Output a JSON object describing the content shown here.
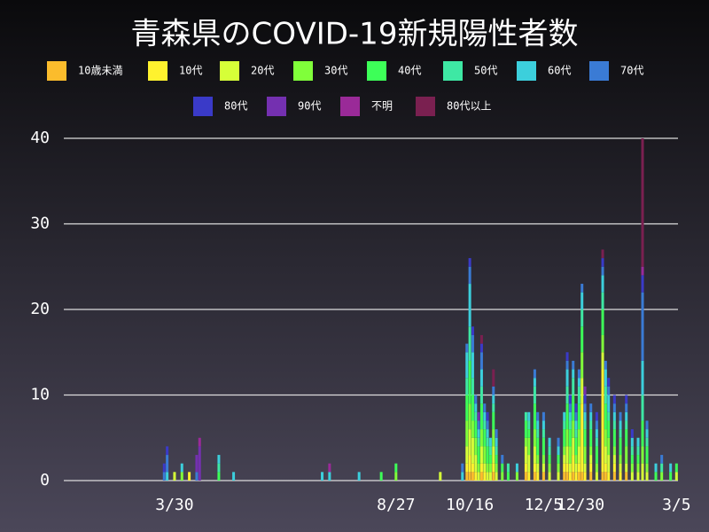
{
  "chart_data": {
    "type": "stacked-bar",
    "title": "青森県のCOVID-19新規陽性者数",
    "x": [
      -7,
      -5,
      0,
      5,
      10,
      15,
      17,
      30,
      40,
      100,
      105,
      125,
      140,
      150,
      180,
      195,
      198,
      200,
      202,
      204,
      206,
      208,
      210,
      212,
      214,
      216,
      218,
      222,
      226,
      232,
      238,
      240,
      244,
      246,
      250,
      254,
      260,
      264,
      266,
      268,
      270,
      272,
      274,
      276,
      278,
      282,
      286,
      290,
      292,
      294,
      298,
      302,
      306,
      310,
      314,
      317,
      320,
      326,
      330,
      336,
      340
    ],
    "xlim": [
      -75,
      341
    ],
    "xticks": [
      {
        "value": 0,
        "label": "3/30"
      },
      {
        "value": 150,
        "label": "8/27"
      },
      {
        "value": 200,
        "label": "10/16"
      },
      {
        "value": 250,
        "label": "12/5"
      },
      {
        "value": 275,
        "label": "12/30"
      },
      {
        "value": 340,
        "label": "3/5"
      }
    ],
    "ylim": [
      0,
      40
    ],
    "yticks": [
      0,
      10,
      20,
      30,
      40
    ],
    "grid": true,
    "series": [
      {
        "name": "10歳未満",
        "color": "#fbbc2c",
        "values": [
          0,
          0,
          0,
          0,
          0,
          0,
          0,
          0,
          0,
          0,
          0,
          0,
          0,
          0,
          0,
          0,
          1,
          1,
          1,
          0,
          0,
          1,
          0,
          0,
          0,
          1,
          0,
          0,
          0,
          0,
          1,
          0,
          1,
          0,
          1,
          0,
          0,
          1,
          1,
          0,
          1,
          0,
          1,
          1,
          0,
          1,
          0,
          1,
          1,
          0,
          1,
          0,
          1,
          0,
          0,
          0,
          0,
          0,
          0,
          0,
          0
        ]
      },
      {
        "name": "10代",
        "color": "#fff22e",
        "values": [
          0,
          0,
          0,
          0,
          1,
          0,
          0,
          0,
          0,
          0,
          0,
          0,
          0,
          0,
          0,
          0,
          1,
          2,
          1,
          1,
          0,
          1,
          1,
          0,
          0,
          1,
          0,
          0,
          0,
          0,
          1,
          1,
          1,
          1,
          0,
          0,
          0,
          1,
          1,
          1,
          2,
          1,
          1,
          8,
          1,
          1,
          0,
          12,
          1,
          1,
          1,
          1,
          0,
          0,
          0,
          0,
          0,
          0,
          0,
          0,
          0
        ]
      },
      {
        "name": "20代",
        "color": "#d6ff38",
        "values": [
          0,
          0,
          1,
          0,
          0,
          0,
          0,
          0,
          0,
          0,
          0,
          0,
          0,
          0,
          1,
          0,
          2,
          3,
          3,
          2,
          1,
          2,
          1,
          1,
          1,
          2,
          1,
          0,
          0,
          0,
          2,
          2,
          2,
          1,
          1,
          1,
          1,
          1,
          2,
          1,
          2,
          1,
          2,
          3,
          1,
          1,
          1,
          2,
          2,
          2,
          1,
          1,
          1,
          1,
          1,
          2,
          1,
          0,
          0,
          0,
          1
        ]
      },
      {
        "name": "30代",
        "color": "#80ff3a",
        "values": [
          0,
          0,
          0,
          1,
          0,
          0,
          0,
          0,
          0,
          0,
          0,
          0,
          0,
          1,
          0,
          0,
          3,
          3,
          2,
          2,
          1,
          2,
          2,
          1,
          1,
          2,
          1,
          1,
          0,
          1,
          1,
          2,
          2,
          1,
          1,
          1,
          1,
          1,
          2,
          2,
          2,
          1,
          2,
          3,
          2,
          1,
          1,
          2,
          2,
          2,
          1,
          1,
          2,
          1,
          1,
          2,
          1,
          0,
          1,
          0,
          0
        ]
      },
      {
        "name": "40代",
        "color": "#3dff58",
        "values": [
          0,
          0,
          0,
          0,
          0,
          0,
          0,
          1,
          0,
          0,
          0,
          0,
          1,
          1,
          0,
          0,
          3,
          5,
          3,
          2,
          2,
          3,
          2,
          2,
          1,
          2,
          1,
          1,
          1,
          0,
          2,
          1,
          3,
          2,
          2,
          1,
          1,
          2,
          3,
          2,
          3,
          2,
          3,
          3,
          2,
          2,
          2,
          3,
          3,
          2,
          2,
          2,
          2,
          1,
          1,
          3,
          2,
          1,
          0,
          1,
          1
        ]
      },
      {
        "name": "50代",
        "color": "#3ee8a4",
        "values": [
          0,
          0,
          0,
          0,
          0,
          0,
          0,
          1,
          0,
          0,
          0,
          0,
          0,
          0,
          0,
          0,
          2,
          4,
          2,
          1,
          1,
          2,
          1,
          1,
          1,
          1,
          1,
          0,
          1,
          0,
          1,
          1,
          2,
          1,
          1,
          1,
          0,
          1,
          2,
          1,
          2,
          1,
          2,
          2,
          1,
          1,
          1,
          2,
          2,
          1,
          1,
          1,
          1,
          1,
          1,
          3,
          1,
          0,
          1,
          0,
          0
        ]
      },
      {
        "name": "60代",
        "color": "#3ccfdc",
        "values": [
          0,
          1,
          0,
          1,
          0,
          0,
          0,
          1,
          1,
          1,
          1,
          1,
          0,
          0,
          0,
          1,
          3,
          5,
          3,
          1,
          1,
          2,
          1,
          1,
          1,
          1,
          1,
          0,
          0,
          1,
          0,
          1,
          1,
          1,
          1,
          1,
          1,
          1,
          2,
          1,
          1,
          1,
          1,
          2,
          1,
          1,
          1,
          2,
          2,
          2,
          1,
          1,
          1,
          1,
          1,
          4,
          1,
          1,
          0,
          1,
          0
        ]
      },
      {
        "name": "70代",
        "color": "#3a7bd5",
        "values": [
          1,
          2,
          0,
          0,
          0,
          1,
          0,
          0,
          0,
          0,
          0,
          0,
          0,
          0,
          0,
          1,
          1,
          2,
          2,
          1,
          1,
          2,
          1,
          1,
          0,
          1,
          1,
          1,
          0,
          0,
          0,
          0,
          1,
          1,
          1,
          0,
          1,
          0,
          1,
          1,
          1,
          1,
          1,
          1,
          1,
          1,
          1,
          1,
          1,
          1,
          1,
          1,
          1,
          0,
          0,
          8,
          1,
          0,
          1,
          0,
          0
        ]
      },
      {
        "name": "80代",
        "color": "#3a3ac8",
        "values": [
          1,
          1,
          0,
          0,
          0,
          0,
          0,
          0,
          0,
          0,
          0,
          0,
          0,
          0,
          0,
          0,
          0,
          1,
          1,
          0,
          0,
          1,
          0,
          1,
          0,
          0,
          0,
          0,
          0,
          0,
          0,
          0,
          0,
          0,
          0,
          0,
          0,
          0,
          1,
          1,
          0,
          1,
          0,
          0,
          1,
          0,
          1,
          1,
          0,
          1,
          1,
          0,
          1,
          1,
          0,
          2,
          0,
          0,
          0,
          0,
          0
        ]
      },
      {
        "name": "90代",
        "color": "#7430b0",
        "values": [
          0,
          0,
          0,
          0,
          0,
          2,
          4,
          0,
          0,
          0,
          0,
          0,
          0,
          0,
          0,
          0,
          0,
          0,
          0,
          0,
          1,
          0,
          0,
          0,
          0,
          0,
          0,
          0,
          0,
          0,
          0,
          0,
          0,
          0,
          0,
          0,
          0,
          0,
          0,
          0,
          0,
          0,
          0,
          0,
          1,
          0,
          0,
          0,
          0,
          0,
          0,
          0,
          0,
          0,
          0,
          0,
          0,
          0,
          0,
          0,
          0
        ]
      },
      {
        "name": "不明",
        "color": "#9a2a98",
        "values": [
          0,
          0,
          0,
          0,
          0,
          0,
          1,
          0,
          0,
          0,
          1,
          0,
          0,
          0,
          0,
          0,
          0,
          0,
          0,
          0,
          0,
          0,
          0,
          0,
          0,
          0,
          0,
          0,
          0,
          0,
          0,
          0,
          0,
          0,
          0,
          0,
          0,
          0,
          0,
          0,
          0,
          0,
          0,
          0,
          0,
          0,
          0,
          0,
          0,
          0,
          0,
          0,
          0,
          0,
          0,
          1,
          0,
          0,
          0,
          0,
          0
        ]
      },
      {
        "name": "80代以上",
        "color": "#7a2050",
        "values": [
          0,
          0,
          0,
          0,
          0,
          0,
          0,
          0,
          0,
          0,
          0,
          0,
          0,
          0,
          0,
          0,
          0,
          0,
          0,
          0,
          0,
          1,
          0,
          0,
          0,
          2,
          0,
          0,
          0,
          0,
          0,
          0,
          0,
          0,
          0,
          0,
          0,
          0,
          0,
          0,
          0,
          0,
          0,
          0,
          0,
          0,
          0,
          1,
          0,
          0,
          0,
          0,
          0,
          0,
          0,
          15,
          0,
          0,
          0,
          0,
          0
        ]
      }
    ]
  }
}
